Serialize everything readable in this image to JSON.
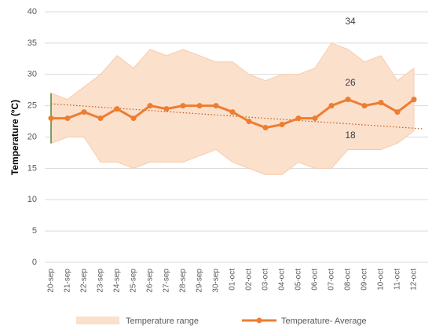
{
  "chart_data": {
    "type": "line",
    "y_label": "Temperature (ºC)",
    "categories": [
      "20-sep",
      "21-sep",
      "22-sep",
      "23-sep",
      "24-sep",
      "25-sep",
      "26-sep",
      "27-sep",
      "28-sep",
      "29-sep",
      "30-sep",
      "01-oct",
      "02-oct",
      "03-oct",
      "04-oct",
      "05-oct",
      "06-oct",
      "07-oct",
      "08-oct",
      "09-oct",
      "10-oct",
      "11-oct",
      "12-oct"
    ],
    "series": [
      {
        "name": "Temperature range",
        "color": "#fbe0cc",
        "high": [
          27,
          26,
          28,
          30,
          33,
          31,
          34,
          33,
          34,
          33,
          32,
          32,
          30,
          29,
          30,
          30,
          31,
          35,
          34,
          32,
          33,
          29,
          31
        ],
        "low": [
          19,
          20,
          20,
          16,
          16,
          15,
          16,
          16,
          16,
          17,
          18,
          16,
          15,
          14,
          14,
          16,
          15,
          15,
          18,
          18,
          18,
          19,
          21
        ]
      },
      {
        "name": "Temperature- Average",
        "color": "#ed7d31",
        "values": [
          23,
          23,
          24,
          23,
          24.5,
          23,
          25,
          24.5,
          25,
          25,
          25,
          24,
          22.5,
          21.5,
          22,
          23,
          23,
          25,
          26,
          25,
          25.5,
          24,
          26
        ]
      }
    ],
    "trendline": {
      "start": 25.3,
      "end": 21.3
    },
    "annotations": [
      "34",
      "26",
      "18"
    ],
    "ylim": [
      0,
      40
    ],
    "yticks": [
      0,
      5,
      10,
      15,
      20,
      25,
      30,
      35,
      40
    ],
    "grid": true,
    "legend": "bottom"
  }
}
